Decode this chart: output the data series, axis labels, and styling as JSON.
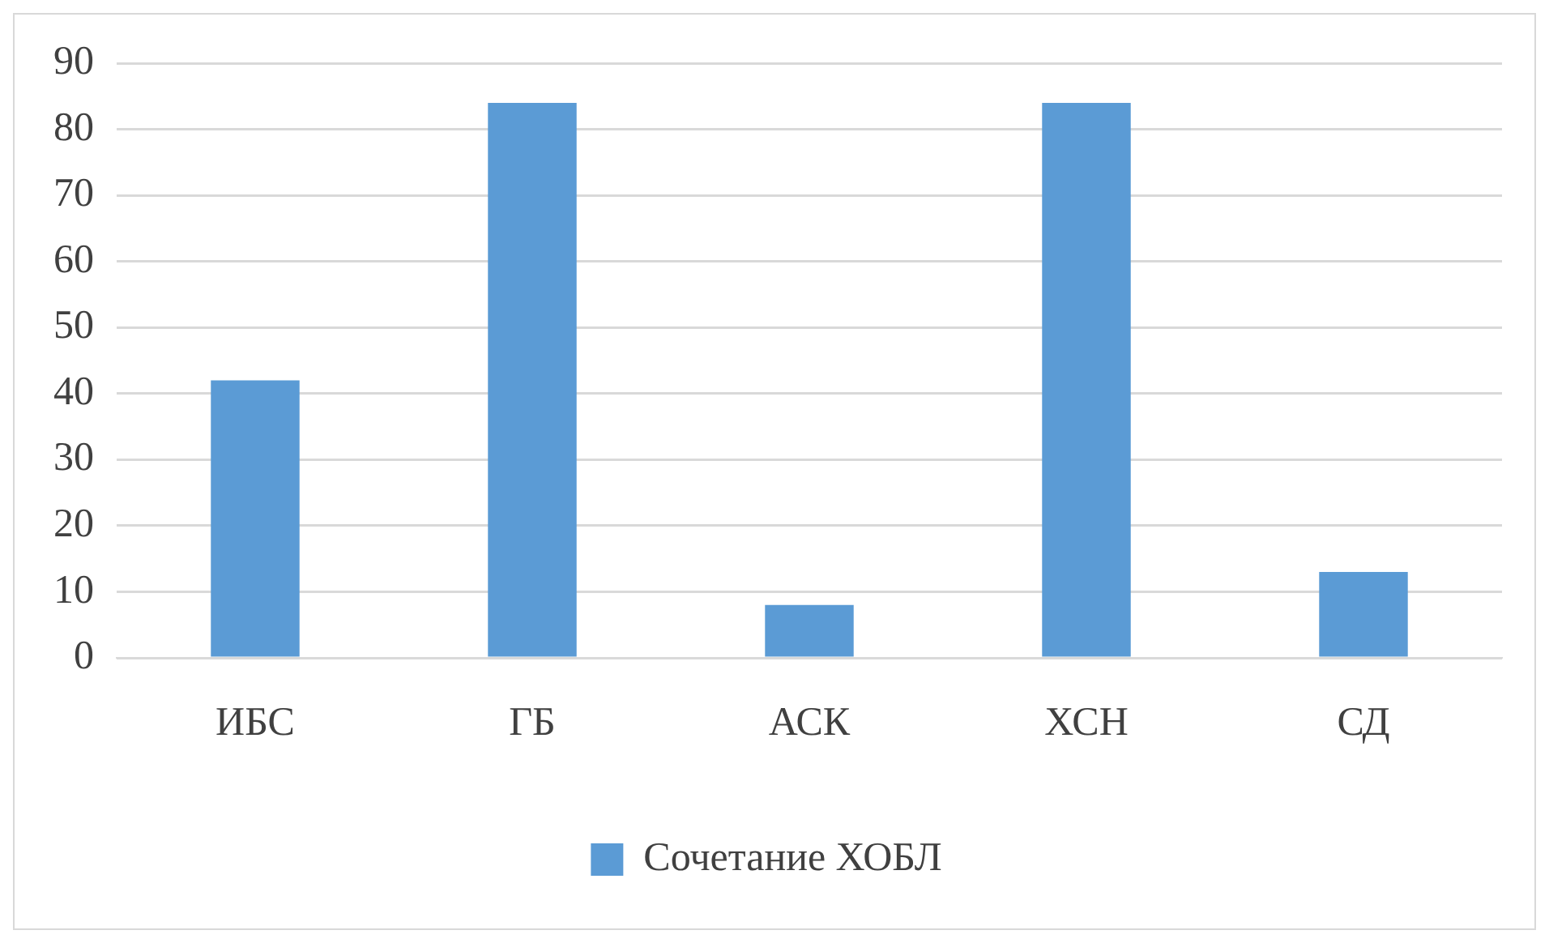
{
  "chart_data": {
    "type": "bar",
    "categories": [
      "ИБС",
      "ГБ",
      "АСК",
      "ХСН",
      "СД"
    ],
    "series": [
      {
        "name": "Сочетание ХОБЛ",
        "color": "#5b9bd5",
        "values": [
          42,
          84,
          8,
          84,
          13
        ]
      }
    ],
    "ylim": [
      0,
      90
    ],
    "yticks": [
      0,
      10,
      20,
      30,
      40,
      50,
      60,
      70,
      80,
      90
    ],
    "grid": "y",
    "legend": "bottom"
  }
}
